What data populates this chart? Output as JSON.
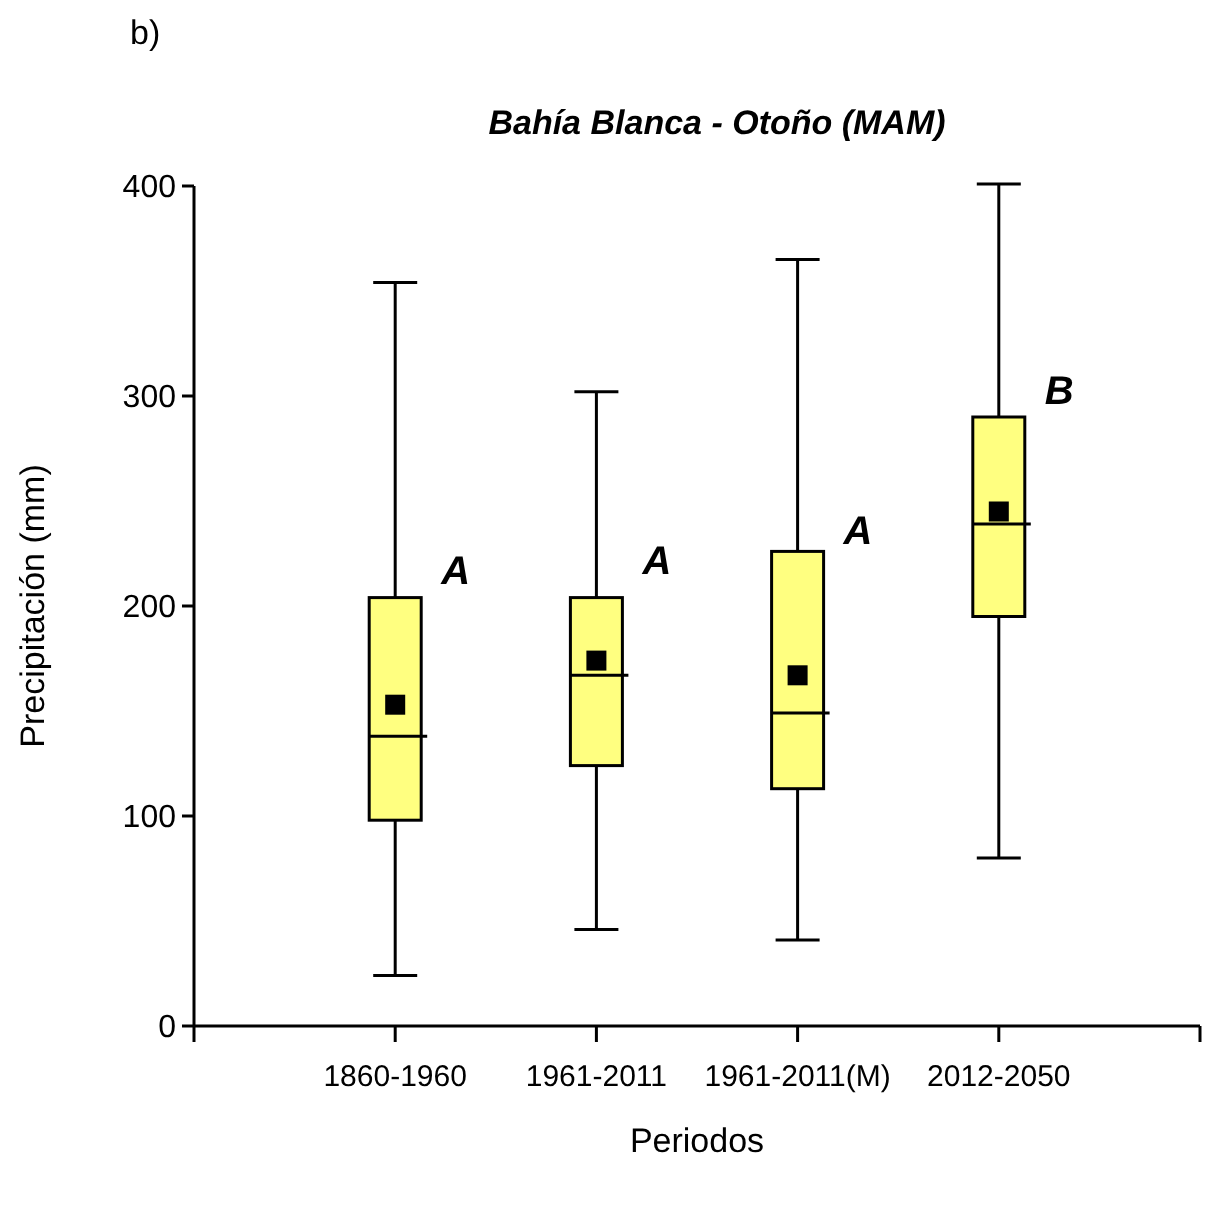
{
  "chart_data": {
    "type": "box",
    "title": "Bahía Blanca - Otoño (MAM)",
    "xlabel": "Periodos",
    "ylabel": "Precipitación (mm)",
    "categories": [
      "1860-1960",
      "1961-2011",
      "1961-2011(M)",
      "2012-2050"
    ],
    "color": "#ffff80",
    "marker": "square",
    "boxes": [
      {
        "low": 24,
        "q1": 98,
        "median": 138,
        "q3": 204,
        "high": 354,
        "mean": 153
      },
      {
        "low": 46,
        "q1": 124,
        "median": 167,
        "q3": 204,
        "high": 302,
        "mean": 174
      },
      {
        "low": 41,
        "q1": 113,
        "median": 149,
        "q3": 226,
        "high": 365,
        "mean": 167
      },
      {
        "low": 80,
        "q1": 195,
        "median": 239,
        "q3": 290,
        "high": 401,
        "mean": 245
      }
    ],
    "ylim": [
      0,
      400
    ],
    "yticks": [
      0,
      100,
      200,
      300,
      400
    ],
    "grid": false,
    "annotations": [
      "b)",
      {
        "text": "A",
        "x": "1860-1960",
        "y": 217
      },
      {
        "text": "A",
        "x": "1961-2011",
        "y": 222
      },
      {
        "text": "A",
        "x": "1961-2011(M)",
        "y": 236
      },
      {
        "text": "B",
        "x": "2012-2050",
        "y": 303
      }
    ]
  }
}
